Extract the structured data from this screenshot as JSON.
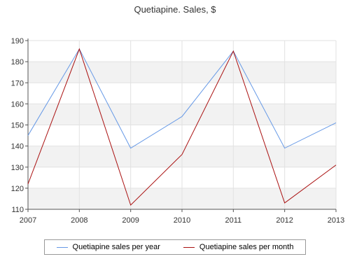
{
  "chart_data": {
    "type": "line",
    "title": "Quetiapine. Sales, $",
    "xlabel": "",
    "ylabel": "",
    "x": [
      "2007",
      "2008",
      "2009",
      "2010",
      "2011",
      "2012",
      "2013"
    ],
    "ylim": [
      110,
      190
    ],
    "yticks": [
      110,
      120,
      130,
      140,
      150,
      160,
      170,
      180,
      190
    ],
    "grid": true,
    "legend_position": "bottom",
    "series": [
      {
        "name": "Quetiapine sales per year",
        "color": "#6699e6",
        "values": [
          145,
          186,
          139,
          154,
          185,
          139,
          151
        ]
      },
      {
        "name": "Quetiapine sales per month",
        "color": "#aa1111",
        "values": [
          122,
          186,
          112,
          136,
          185,
          113,
          131
        ]
      }
    ]
  }
}
